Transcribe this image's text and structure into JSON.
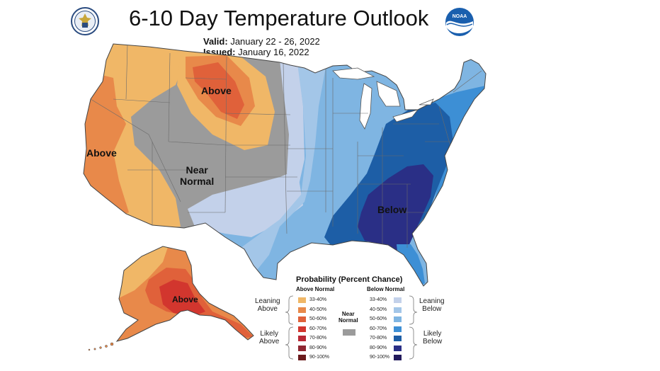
{
  "header": {
    "title": "6-10 Day Temperature Outlook",
    "valid_label": "Valid:",
    "valid_value": "January 22 - 26, 2022",
    "issued_label": "Issued:",
    "issued_value": "January 16, 2022"
  },
  "map_labels": {
    "above_west": "Above",
    "above_north": "Above",
    "near_normal_1": "Near",
    "near_normal_2": "Normal",
    "below": "Below",
    "above_alaska": "Above"
  },
  "legend": {
    "title": "Probability (Percent Chance)",
    "above_header": "Above Normal",
    "below_header": "Below Normal",
    "near_header_1": "Near",
    "near_header_2": "Normal",
    "leaning_above_1": "Leaning",
    "leaning_above_2": "Above",
    "likely_above_1": "Likely",
    "likely_above_2": "Above",
    "leaning_below_1": "Leaning",
    "leaning_below_2": "Below",
    "likely_below_1": "Likely",
    "likely_below_2": "Below",
    "bins": [
      "33-40%",
      "40-50%",
      "50-60%",
      "60-70%",
      "70-80%",
      "80-90%",
      "90-100%"
    ],
    "above_colors": [
      "#f0b767",
      "#e8894a",
      "#e0613a",
      "#d2362e",
      "#b92935",
      "#8f2732",
      "#6a1a1c"
    ],
    "below_colors": [
      "#c3d1ea",
      "#a3c6e8",
      "#7fb5e2",
      "#3d8fd5",
      "#1d5ea6",
      "#2a2f86",
      "#221a5c"
    ],
    "near_color": "#9b9b9b"
  },
  "colors": {
    "water": "#ffffff",
    "land_outline": "#444444",
    "state_lines": "#6b6b6b"
  }
}
